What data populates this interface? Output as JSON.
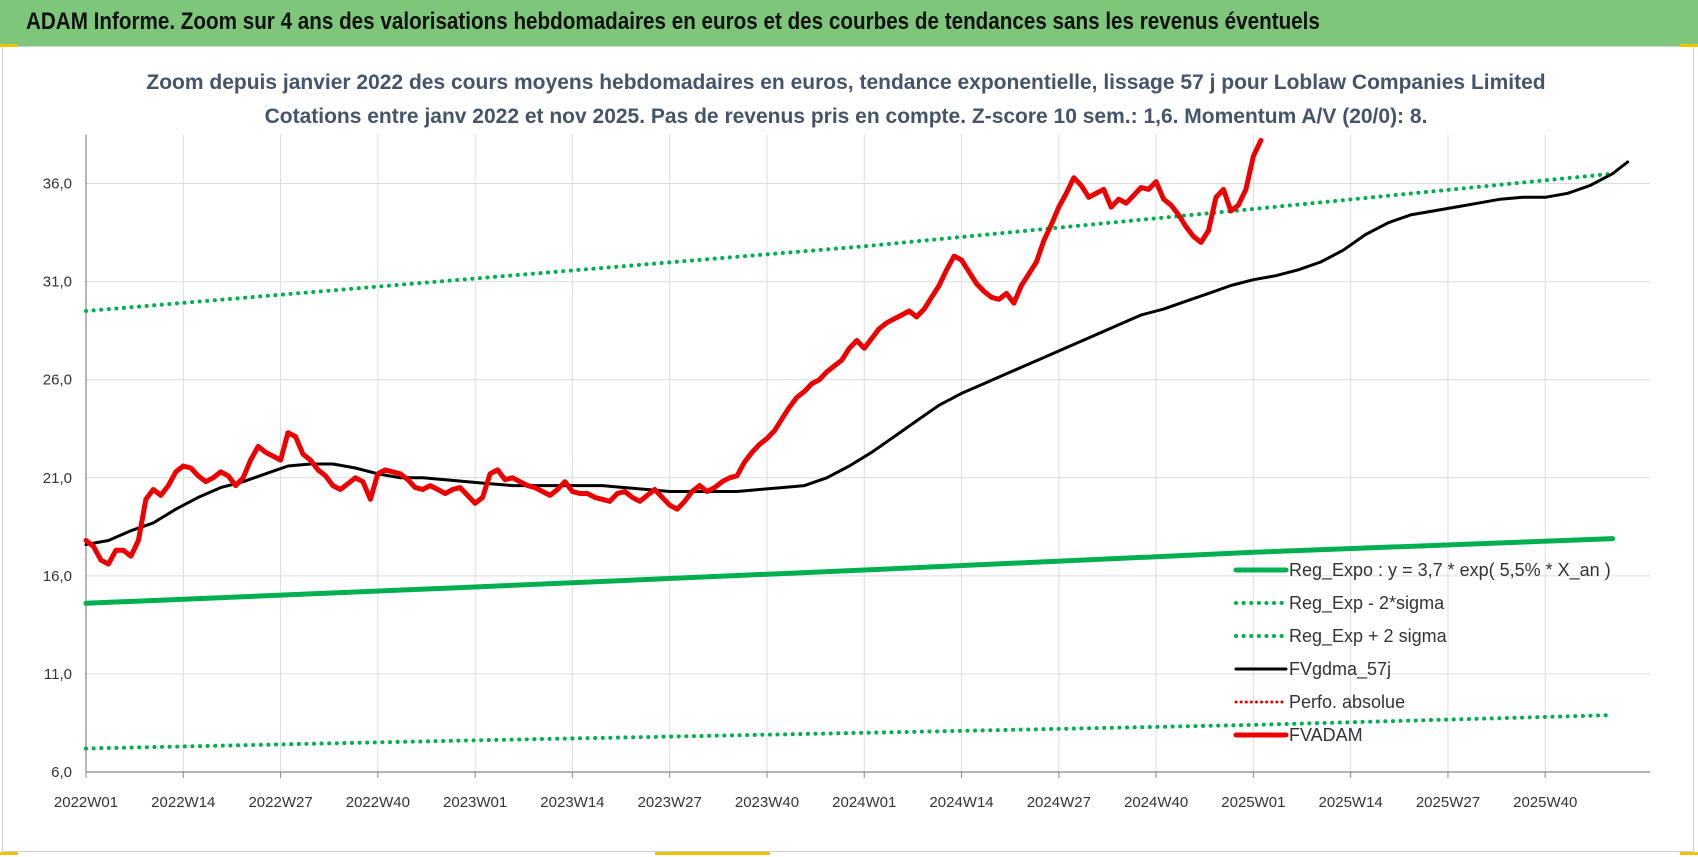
{
  "header": {
    "title": "ADAM Informe. Zoom sur 4 ans des valorisations hebdomadaires en euros et des courbes de tendances sans les revenus éventuels"
  },
  "colors": {
    "header_band": "#7dc67a",
    "reg_expo": "#00b050",
    "fvgdma": "#000000",
    "fvadam": "#ee0000",
    "perfo": "#ee0000"
  },
  "chart_data": {
    "type": "line",
    "title": "Zoom depuis janvier 2022 des cours moyens hebdomadaires en euros, tendance exponentielle, lissage 57 j pour Loblaw Companies Limited",
    "subtitle": "Cotations entre janv 2022 et nov 2025. Pas de revenus pris en compte. Z-score 10 sem.: 1,6. Momentum A/V (20/0): 8.",
    "xlabel": "",
    "ylabel": "",
    "ylim": [
      6.0,
      38.5
    ],
    "yticks": [
      "6,0",
      "11,0",
      "16,0",
      "21,0",
      "26,0",
      "31,0",
      "36,0"
    ],
    "ytick_values": [
      6,
      11,
      16,
      21,
      26,
      31,
      36
    ],
    "x_range_weeks": [
      0,
      209
    ],
    "xticks": [
      {
        "label": "2022W01",
        "week": 0
      },
      {
        "label": "2022W14",
        "week": 13
      },
      {
        "label": "2022W27",
        "week": 26
      },
      {
        "label": "2022W40",
        "week": 39
      },
      {
        "label": "2023W01",
        "week": 52
      },
      {
        "label": "2023W14",
        "week": 65
      },
      {
        "label": "2023W27",
        "week": 78
      },
      {
        "label": "2023W40",
        "week": 91
      },
      {
        "label": "2024W01",
        "week": 104
      },
      {
        "label": "2024W14",
        "week": 117
      },
      {
        "label": "2024W27",
        "week": 130
      },
      {
        "label": "2024W40",
        "week": 143
      },
      {
        "label": "2025W01",
        "week": 156
      },
      {
        "label": "2025W14",
        "week": 169
      },
      {
        "label": "2025W27",
        "week": 182
      },
      {
        "label": "2025W40",
        "week": 195
      }
    ],
    "grid": true,
    "legend_position": "bottom-right",
    "series": [
      {
        "name": "Reg_Expo : y = 3,7 * exp( 5,5% *  X_an )",
        "style": "solid-thick",
        "points": [
          [
            0,
            14.6
          ],
          [
            50,
            15.4
          ],
          [
            104,
            16.3
          ],
          [
            156,
            17.2
          ],
          [
            204,
            17.9
          ]
        ]
      },
      {
        "name": "Reg_Exp - 2*sigma",
        "style": "dotted",
        "points": [
          [
            0,
            7.2
          ],
          [
            50,
            7.6
          ],
          [
            104,
            8.0
          ],
          [
            156,
            8.4
          ],
          [
            204,
            8.9
          ]
        ]
      },
      {
        "name": "Reg_Exp + 2 sigma",
        "style": "dotted",
        "points": [
          [
            0,
            29.5
          ],
          [
            50,
            31.1
          ],
          [
            104,
            32.8
          ],
          [
            156,
            34.7
          ],
          [
            204,
            36.5
          ]
        ]
      },
      {
        "name": "FVgdma_57j",
        "style": "solid",
        "points": [
          [
            0,
            17.6
          ],
          [
            3,
            17.8
          ],
          [
            6,
            18.3
          ],
          [
            9,
            18.7
          ],
          [
            12,
            19.4
          ],
          [
            15,
            20.0
          ],
          [
            18,
            20.5
          ],
          [
            21,
            20.8
          ],
          [
            24,
            21.2
          ],
          [
            27,
            21.6
          ],
          [
            30,
            21.7
          ],
          [
            33,
            21.7
          ],
          [
            36,
            21.5
          ],
          [
            39,
            21.2
          ],
          [
            42,
            21.0
          ],
          [
            45,
            21.0
          ],
          [
            48,
            20.9
          ],
          [
            51,
            20.8
          ],
          [
            54,
            20.7
          ],
          [
            57,
            20.6
          ],
          [
            60,
            20.6
          ],
          [
            63,
            20.6
          ],
          [
            66,
            20.6
          ],
          [
            69,
            20.6
          ],
          [
            72,
            20.5
          ],
          [
            75,
            20.4
          ],
          [
            78,
            20.3
          ],
          [
            81,
            20.3
          ],
          [
            84,
            20.3
          ],
          [
            87,
            20.3
          ],
          [
            90,
            20.4
          ],
          [
            93,
            20.5
          ],
          [
            96,
            20.6
          ],
          [
            99,
            21.0
          ],
          [
            102,
            21.6
          ],
          [
            105,
            22.3
          ],
          [
            108,
            23.1
          ],
          [
            111,
            23.9
          ],
          [
            114,
            24.7
          ],
          [
            117,
            25.3
          ],
          [
            120,
            25.8
          ],
          [
            123,
            26.3
          ],
          [
            126,
            26.8
          ],
          [
            129,
            27.3
          ],
          [
            132,
            27.8
          ],
          [
            135,
            28.3
          ],
          [
            138,
            28.8
          ],
          [
            141,
            29.3
          ],
          [
            144,
            29.6
          ],
          [
            147,
            30.0
          ],
          [
            150,
            30.4
          ],
          [
            153,
            30.8
          ],
          [
            156,
            31.1
          ],
          [
            159,
            31.3
          ],
          [
            162,
            31.6
          ],
          [
            165,
            32.0
          ],
          [
            168,
            32.6
          ],
          [
            171,
            33.4
          ],
          [
            174,
            34.0
          ],
          [
            177,
            34.4
          ],
          [
            180,
            34.6
          ],
          [
            183,
            34.8
          ],
          [
            186,
            35.0
          ],
          [
            189,
            35.2
          ],
          [
            192,
            35.3
          ],
          [
            195,
            35.3
          ],
          [
            198,
            35.5
          ],
          [
            201,
            35.9
          ],
          [
            204,
            36.5
          ],
          [
            206,
            37.1
          ]
        ]
      },
      {
        "name": "Perfo. absolue",
        "style": "dotted",
        "points": []
      },
      {
        "name": "FVADAM",
        "style": "solid-thick",
        "points": [
          [
            0,
            17.8
          ],
          [
            1,
            17.5
          ],
          [
            2,
            16.8
          ],
          [
            3,
            16.6
          ],
          [
            4,
            17.3
          ],
          [
            5,
            17.3
          ],
          [
            6,
            17.0
          ],
          [
            7,
            17.8
          ],
          [
            8,
            19.9
          ],
          [
            9,
            20.4
          ],
          [
            10,
            20.1
          ],
          [
            11,
            20.6
          ],
          [
            12,
            21.3
          ],
          [
            13,
            21.6
          ],
          [
            14,
            21.5
          ],
          [
            15,
            21.1
          ],
          [
            16,
            20.8
          ],
          [
            17,
            21.0
          ],
          [
            18,
            21.3
          ],
          [
            19,
            21.1
          ],
          [
            20,
            20.6
          ],
          [
            21,
            21.0
          ],
          [
            22,
            21.9
          ],
          [
            23,
            22.6
          ],
          [
            24,
            22.3
          ],
          [
            25,
            22.1
          ],
          [
            26,
            21.9
          ],
          [
            27,
            23.3
          ],
          [
            28,
            23.1
          ],
          [
            29,
            22.2
          ],
          [
            30,
            21.9
          ],
          [
            31,
            21.4
          ],
          [
            32,
            21.1
          ],
          [
            33,
            20.6
          ],
          [
            34,
            20.4
          ],
          [
            35,
            20.7
          ],
          [
            36,
            21.0
          ],
          [
            37,
            20.8
          ],
          [
            38,
            19.9
          ],
          [
            39,
            21.2
          ],
          [
            40,
            21.4
          ],
          [
            41,
            21.3
          ],
          [
            42,
            21.2
          ],
          [
            43,
            20.9
          ],
          [
            44,
            20.5
          ],
          [
            45,
            20.4
          ],
          [
            46,
            20.6
          ],
          [
            47,
            20.4
          ],
          [
            48,
            20.2
          ],
          [
            49,
            20.4
          ],
          [
            50,
            20.5
          ],
          [
            51,
            20.1
          ],
          [
            52,
            19.7
          ],
          [
            53,
            20.0
          ],
          [
            54,
            21.2
          ],
          [
            55,
            21.4
          ],
          [
            56,
            20.9
          ],
          [
            57,
            21.0
          ],
          [
            58,
            20.8
          ],
          [
            59,
            20.6
          ],
          [
            60,
            20.5
          ],
          [
            61,
            20.3
          ],
          [
            62,
            20.1
          ],
          [
            63,
            20.4
          ],
          [
            64,
            20.8
          ],
          [
            65,
            20.3
          ],
          [
            66,
            20.2
          ],
          [
            67,
            20.2
          ],
          [
            68,
            20.0
          ],
          [
            69,
            19.9
          ],
          [
            70,
            19.8
          ],
          [
            71,
            20.2
          ],
          [
            72,
            20.3
          ],
          [
            73,
            20.0
          ],
          [
            74,
            19.8
          ],
          [
            75,
            20.1
          ],
          [
            76,
            20.4
          ],
          [
            77,
            20.0
          ],
          [
            78,
            19.6
          ],
          [
            79,
            19.4
          ],
          [
            80,
            19.8
          ],
          [
            81,
            20.3
          ],
          [
            82,
            20.6
          ],
          [
            83,
            20.3
          ],
          [
            84,
            20.5
          ],
          [
            85,
            20.8
          ],
          [
            86,
            21.0
          ],
          [
            87,
            21.1
          ],
          [
            88,
            21.8
          ],
          [
            89,
            22.3
          ],
          [
            90,
            22.7
          ],
          [
            91,
            23.0
          ],
          [
            92,
            23.4
          ],
          [
            93,
            24.0
          ],
          [
            94,
            24.6
          ],
          [
            95,
            25.1
          ],
          [
            96,
            25.4
          ],
          [
            97,
            25.8
          ],
          [
            98,
            26.0
          ],
          [
            99,
            26.4
          ],
          [
            100,
            26.7
          ],
          [
            101,
            27.0
          ],
          [
            102,
            27.6
          ],
          [
            103,
            28.0
          ],
          [
            104,
            27.6
          ],
          [
            105,
            28.1
          ],
          [
            106,
            28.6
          ],
          [
            107,
            28.9
          ],
          [
            108,
            29.1
          ],
          [
            109,
            29.3
          ],
          [
            110,
            29.5
          ],
          [
            111,
            29.2
          ],
          [
            112,
            29.6
          ],
          [
            113,
            30.2
          ],
          [
            114,
            30.8
          ],
          [
            115,
            31.6
          ],
          [
            116,
            32.3
          ],
          [
            117,
            32.1
          ],
          [
            118,
            31.5
          ],
          [
            119,
            30.9
          ],
          [
            120,
            30.5
          ],
          [
            121,
            30.2
          ],
          [
            122,
            30.1
          ],
          [
            123,
            30.4
          ],
          [
            124,
            29.9
          ],
          [
            125,
            30.8
          ],
          [
            126,
            31.4
          ],
          [
            127,
            32.0
          ],
          [
            128,
            33.1
          ],
          [
            129,
            33.9
          ],
          [
            130,
            34.8
          ],
          [
            131,
            35.5
          ],
          [
            132,
            36.3
          ],
          [
            133,
            35.9
          ],
          [
            134,
            35.3
          ],
          [
            135,
            35.5
          ],
          [
            136,
            35.7
          ],
          [
            137,
            34.8
          ],
          [
            138,
            35.2
          ],
          [
            139,
            35.0
          ],
          [
            140,
            35.4
          ],
          [
            141,
            35.8
          ],
          [
            142,
            35.7
          ],
          [
            143,
            36.1
          ],
          [
            144,
            35.2
          ],
          [
            145,
            34.9
          ],
          [
            146,
            34.4
          ],
          [
            147,
            33.8
          ],
          [
            148,
            33.3
          ],
          [
            149,
            33.0
          ],
          [
            150,
            33.6
          ],
          [
            151,
            35.3
          ],
          [
            152,
            35.7
          ],
          [
            153,
            34.6
          ],
          [
            154,
            34.9
          ],
          [
            155,
            35.7
          ],
          [
            156,
            37.4
          ],
          [
            157,
            38.2
          ]
        ]
      }
    ]
  }
}
